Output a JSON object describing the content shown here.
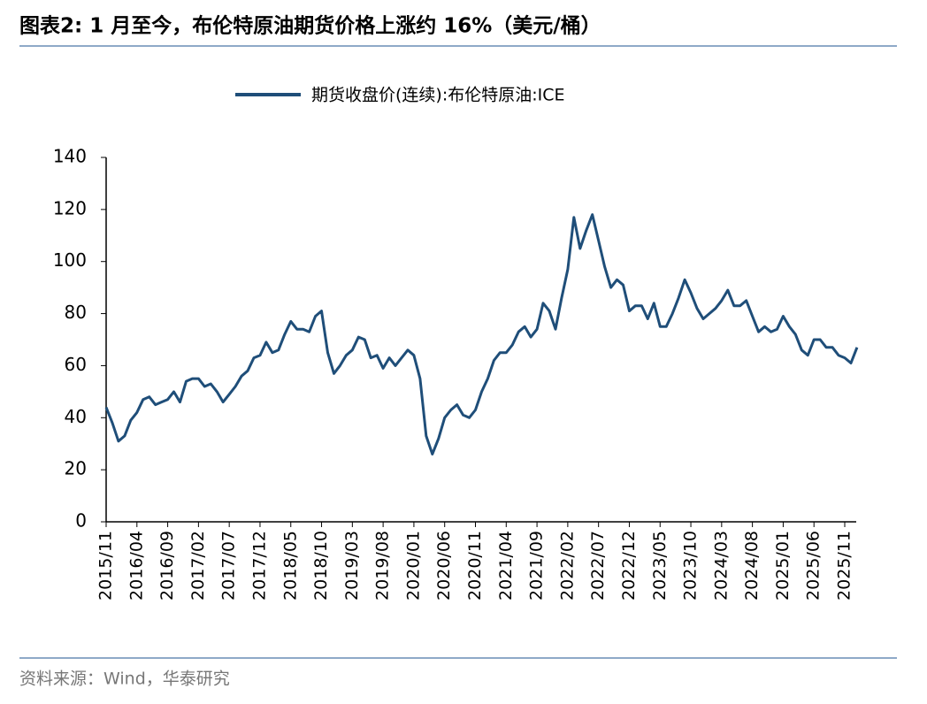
{
  "chart_data": {
    "type": "line",
    "title": "图表2:  1 月至今，布伦特原油期货价格上涨约 16%（美元/桶）",
    "source": "资料来源：Wind，华泰研究",
    "categories": [
      "2015/11",
      null,
      null,
      null,
      null,
      "2016/04",
      null,
      null,
      null,
      null,
      "2016/09",
      null,
      null,
      null,
      null,
      "2017/02",
      null,
      null,
      null,
      null,
      "2017/07",
      null,
      null,
      null,
      null,
      "2017/12",
      null,
      null,
      null,
      null,
      "2018/05",
      null,
      null,
      null,
      null,
      "2018/10",
      null,
      null,
      null,
      null,
      "2019/03",
      null,
      null,
      null,
      null,
      "2019/08",
      null,
      null,
      null,
      null,
      "2020/01",
      null,
      null,
      null,
      null,
      "2020/06",
      null,
      null,
      null,
      null,
      "2020/11",
      null,
      null,
      null,
      null,
      "2021/04",
      null,
      null,
      null,
      null,
      "2021/09",
      null,
      null,
      null,
      null,
      "2022/02",
      null,
      null,
      null,
      null,
      "2022/07",
      null,
      null,
      null,
      null,
      "2022/12",
      null,
      null,
      null,
      null,
      "2023/05",
      null,
      null,
      null,
      null,
      "2023/10",
      null,
      null,
      null,
      null,
      "2024/03",
      null,
      null,
      null,
      null,
      "2024/08",
      null,
      null,
      null,
      null,
      "2025/01",
      null,
      null,
      null,
      null,
      "2025/06",
      null,
      null,
      null,
      null,
      "2025/11",
      null,
      null
    ],
    "series": [
      {
        "name": "期货收盘价(连续):布伦特原油:ICE",
        "color": "#1f4e79",
        "values": [
          44,
          38,
          31,
          33,
          39,
          42,
          47,
          48,
          45,
          46,
          47,
          50,
          46,
          54,
          55,
          55,
          52,
          53,
          50,
          46,
          49,
          52,
          56,
          58,
          63,
          64,
          69,
          65,
          66,
          72,
          77,
          74,
          74,
          73,
          79,
          81,
          65,
          57,
          60,
          64,
          66,
          71,
          70,
          63,
          64,
          59,
          63,
          60,
          63,
          66,
          64,
          55,
          33,
          26,
          32,
          40,
          43,
          45,
          41,
          40,
          43,
          50,
          55,
          62,
          65,
          65,
          68,
          73,
          75,
          71,
          74,
          84,
          81,
          74,
          86,
          97,
          117,
          105,
          112,
          118,
          108,
          98,
          90,
          93,
          91,
          81,
          83,
          83,
          78,
          84,
          75,
          75,
          80,
          86,
          93,
          88,
          82,
          78,
          80,
          82,
          85,
          89,
          83,
          83,
          85,
          79,
          73,
          75,
          73,
          74,
          79,
          75,
          72,
          66,
          64,
          70,
          70,
          67,
          67,
          64,
          63,
          61,
          67
        ]
      }
    ],
    "ylim": [
      0,
      140
    ],
    "yticks": [
      0,
      20,
      40,
      60,
      80,
      100,
      120,
      140
    ],
    "legend": "top"
  }
}
